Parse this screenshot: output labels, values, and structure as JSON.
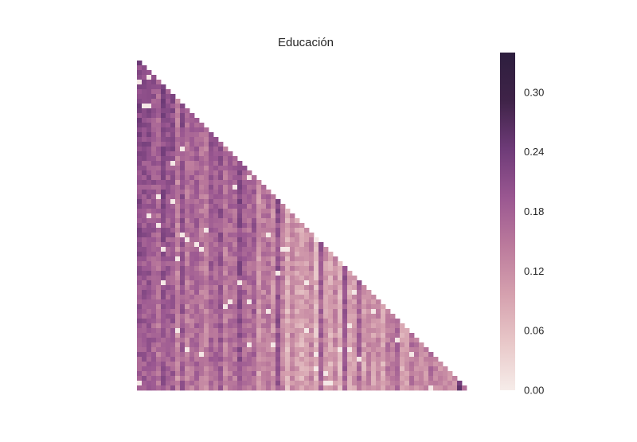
{
  "chart_data": {
    "type": "heatmap",
    "title": "Educación",
    "shape": "lower-triangle",
    "n": 70,
    "xlabel": "",
    "ylabel": "",
    "show_tick_labels": false,
    "grid": false,
    "colorbar": {
      "placement": "right",
      "range": [
        0.0,
        0.34
      ],
      "ticks": [
        0.0,
        0.06,
        0.12,
        0.18,
        0.24,
        0.3
      ],
      "tick_labels": [
        "0.00",
        "0.06",
        "0.12",
        "0.18",
        "0.24",
        "0.30"
      ],
      "colors": [
        "#f6ece9",
        "#e8c7c8",
        "#d5a0ae",
        "#bb7a9c",
        "#9a5791",
        "#6e3b78",
        "#3f2348",
        "#2d1e3e"
      ]
    },
    "column_base_values": [
      0.19,
      0.18,
      0.18,
      0.17,
      0.15,
      0.19,
      0.17,
      0.18,
      0.12,
      0.18,
      0.13,
      0.15,
      0.16,
      0.14,
      0.13,
      0.17,
      0.16,
      0.18,
      0.13,
      0.15,
      0.15,
      0.2,
      0.16,
      0.15,
      0.17,
      0.1,
      0.13,
      0.14,
      0.11,
      0.19,
      0.13,
      0.07,
      0.12,
      0.09,
      0.08,
      0.09,
      0.12,
      0.06,
      0.17,
      0.1,
      0.08,
      0.12,
      0.07,
      0.18,
      0.08,
      0.1,
      0.17,
      0.09,
      0.13,
      0.1,
      0.12,
      0.08,
      0.14,
      0.13,
      0.16,
      0.09,
      0.1,
      0.15,
      0.13,
      0.11,
      0.12,
      0.15,
      0.13,
      0.12,
      0.14,
      0.12,
      0.13,
      0.26,
      0.14,
      0.11
    ],
    "value_rule": "value[i][j] = column_base_values[j] + deterministic noise (±0.03) + 0.03 near top, for j < i"
  }
}
